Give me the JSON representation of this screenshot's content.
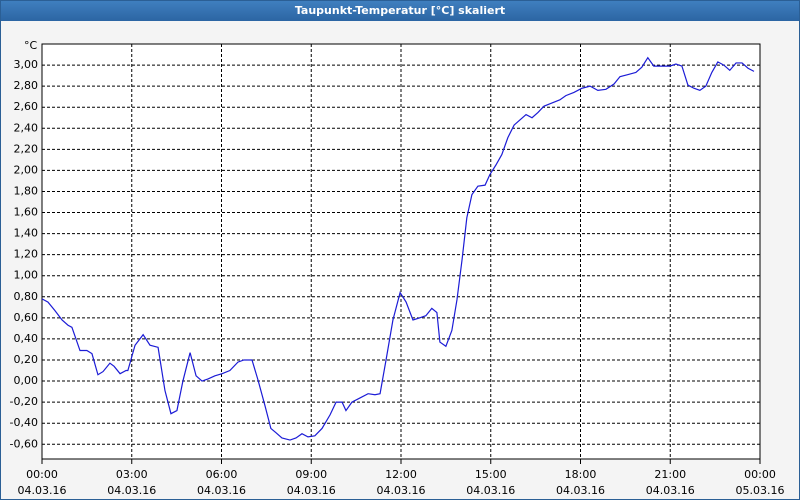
{
  "chart_data": {
    "type": "line",
    "title": "Taupunkt-Temperatur [°C] skaliert",
    "y_unit": "°C",
    "xlim": [
      0,
      24
    ],
    "ylim": [
      -0.74,
      3.2
    ],
    "grid": true,
    "xticks": [
      {
        "value": 0,
        "label": "00:00",
        "date": "04.03.16"
      },
      {
        "value": 3,
        "label": "03:00",
        "date": "04.03.16"
      },
      {
        "value": 6,
        "label": "06:00",
        "date": "04.03.16"
      },
      {
        "value": 9,
        "label": "09:00",
        "date": "04.03.16"
      },
      {
        "value": 12,
        "label": "12:00",
        "date": "04.03.16"
      },
      {
        "value": 15,
        "label": "15:00",
        "date": "04.03.16"
      },
      {
        "value": 18,
        "label": "18:00",
        "date": "04.03.16"
      },
      {
        "value": 21,
        "label": "21:00",
        "date": "04.03.16"
      },
      {
        "value": 24,
        "label": "00:00",
        "date": "05.03.16"
      }
    ],
    "yticks": [
      {
        "value": -0.6,
        "label": "-0,60"
      },
      {
        "value": -0.4,
        "label": "-0,40"
      },
      {
        "value": -0.2,
        "label": "-0,20"
      },
      {
        "value": 0,
        "label": "0,00"
      },
      {
        "value": 0.2,
        "label": "0,20"
      },
      {
        "value": 0.4,
        "label": "0,40"
      },
      {
        "value": 0.6,
        "label": "0,60"
      },
      {
        "value": 0.8,
        "label": "0,80"
      },
      {
        "value": 1,
        "label": "1,00"
      },
      {
        "value": 1.2,
        "label": "1,20"
      },
      {
        "value": 1.4,
        "label": "1,40"
      },
      {
        "value": 1.6,
        "label": "1,60"
      },
      {
        "value": 1.8,
        "label": "1,80"
      },
      {
        "value": 2,
        "label": "2,00"
      },
      {
        "value": 2.2,
        "label": "2,20"
      },
      {
        "value": 2.4,
        "label": "2,40"
      },
      {
        "value": 2.6,
        "label": "2,60"
      },
      {
        "value": 2.8,
        "label": "2,80"
      },
      {
        "value": 3,
        "label": "3,00"
      }
    ],
    "series": [
      {
        "color": "#1c1cd6",
        "x": [
          0,
          0.2,
          0.43,
          0.67,
          0.87,
          1.0,
          1.27,
          1.5,
          1.67,
          1.87,
          2.04,
          2.27,
          2.41,
          2.61,
          2.81,
          2.87,
          3.11,
          3.38,
          3.61,
          3.88,
          4.11,
          4.31,
          4.51,
          4.71,
          4.95,
          5.15,
          5.35,
          5.55,
          5.78,
          6.02,
          6.28,
          6.55,
          6.75,
          7.02,
          7.22,
          7.45,
          7.65,
          7.82,
          8.02,
          8.29,
          8.49,
          8.69,
          8.89,
          9.12,
          9.36,
          9.63,
          9.83,
          10.03,
          10.16,
          10.36,
          10.63,
          10.9,
          11.13,
          11.3,
          11.5,
          11.73,
          11.97,
          12.17,
          12.4,
          12.63,
          12.83,
          13.03,
          13.2,
          13.3,
          13.5,
          13.7,
          13.87,
          14.04,
          14.2,
          14.37,
          14.57,
          14.81,
          14.97,
          15.17,
          15.37,
          15.57,
          15.78,
          15.98,
          16.18,
          16.38,
          16.58,
          16.78,
          17.05,
          17.31,
          17.51,
          17.78,
          18.05,
          18.32,
          18.58,
          18.85,
          19.12,
          19.32,
          19.59,
          19.85,
          20.05,
          20.25,
          20.45,
          20.72,
          20.99,
          21.19,
          21.39,
          21.59,
          21.79,
          21.99,
          22.19,
          22.39,
          22.59,
          22.79,
          22.99,
          23.2,
          23.4,
          23.6,
          23.8
        ],
        "values": [
          0.78,
          0.75,
          0.67,
          0.58,
          0.53,
          0.51,
          0.29,
          0.29,
          0.26,
          0.06,
          0.09,
          0.17,
          0.14,
          0.07,
          0.1,
          0.1,
          0.34,
          0.44,
          0.34,
          0.32,
          -0.09,
          -0.31,
          -0.28,
          0.0,
          0.27,
          0.05,
          0.0,
          0.02,
          0.05,
          0.07,
          0.1,
          0.18,
          0.2,
          0.2,
          0.01,
          -0.23,
          -0.45,
          -0.49,
          -0.54,
          -0.56,
          -0.54,
          -0.5,
          -0.53,
          -0.52,
          -0.45,
          -0.32,
          -0.2,
          -0.2,
          -0.28,
          -0.2,
          -0.16,
          -0.12,
          -0.13,
          -0.12,
          0.2,
          0.58,
          0.84,
          0.75,
          0.58,
          0.6,
          0.62,
          0.69,
          0.65,
          0.37,
          0.33,
          0.48,
          0.77,
          1.15,
          1.55,
          1.77,
          1.85,
          1.86,
          1.96,
          2.05,
          2.15,
          2.31,
          2.43,
          2.48,
          2.53,
          2.5,
          2.55,
          2.61,
          2.64,
          2.67,
          2.71,
          2.74,
          2.78,
          2.8,
          2.76,
          2.77,
          2.82,
          2.89,
          2.91,
          2.93,
          2.98,
          3.07,
          2.99,
          2.99,
          2.99,
          3.01,
          2.99,
          2.81,
          2.78,
          2.76,
          2.8,
          2.93,
          3.03,
          3.0,
          2.95,
          3.02,
          3.02,
          2.97,
          2.94
        ]
      }
    ]
  }
}
